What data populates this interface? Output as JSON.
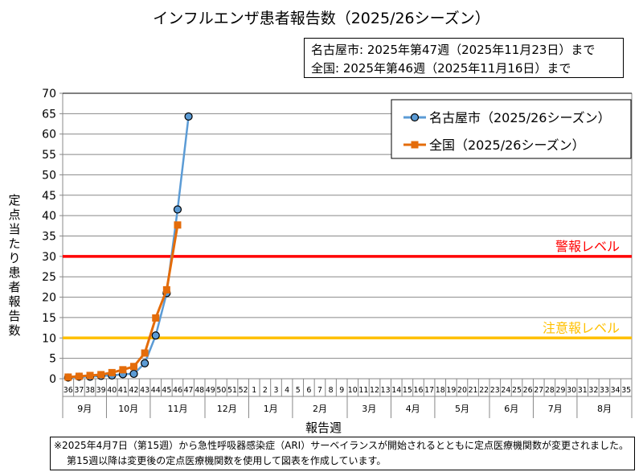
{
  "chart_data": {
    "type": "line",
    "title": "インフルエンザ患者報告数（2025/26シーズン）",
    "info_lines": [
      "名古屋市: 2025年第47週（2025年11月23日）まで",
      "全国: 2025年第46週（2025年11月16日）まで"
    ],
    "xlabel": "報告週",
    "ylabel": "定点当たり患者報告数",
    "ylim": [
      0,
      70
    ],
    "yticks": [
      0,
      5,
      10,
      15,
      20,
      25,
      30,
      35,
      40,
      45,
      50,
      55,
      60,
      65,
      70
    ],
    "grid": true,
    "legend_position": "top-right",
    "weeks": [
      "36",
      "37",
      "38",
      "39",
      "40",
      "41",
      "42",
      "43",
      "44",
      "45",
      "46",
      "47",
      "48",
      "49",
      "50",
      "51",
      "52",
      "1",
      "2",
      "3",
      "4",
      "5",
      "6",
      "7",
      "8",
      "9",
      "10",
      "11",
      "12",
      "13",
      "14",
      "15",
      "16",
      "17",
      "18",
      "19",
      "20",
      "21",
      "22",
      "23",
      "24",
      "25",
      "26",
      "27",
      "28",
      "29",
      "30",
      "31",
      "32",
      "33",
      "34",
      "35"
    ],
    "months": [
      {
        "label": "9月",
        "weeks": 4
      },
      {
        "label": "10月",
        "weeks": 4
      },
      {
        "label": "11月",
        "weeks": 5
      },
      {
        "label": "12月",
        "weeks": 4
      },
      {
        "label": "1月",
        "weeks": 4
      },
      {
        "label": "2月",
        "weeks": 5
      },
      {
        "label": "3月",
        "weeks": 4
      },
      {
        "label": "4月",
        "weeks": 4
      },
      {
        "label": "5月",
        "weeks": 5
      },
      {
        "label": "6月",
        "weeks": 4
      },
      {
        "label": "7月",
        "weeks": 4
      },
      {
        "label": "8月",
        "weeks": 5
      }
    ],
    "series": [
      {
        "name": "名古屋市（2025/26シーズン）",
        "color": "#5B9BD5",
        "marker": "circle",
        "values": [
          0.3,
          0.5,
          0.5,
          0.7,
          0.8,
          1.1,
          1.2,
          3.8,
          10.6,
          21.0,
          41.5,
          64.3
        ]
      },
      {
        "name": "全国（2025/26シーズン）",
        "color": "#E46C0A",
        "marker": "square",
        "values": [
          0.4,
          0.6,
          0.8,
          1.0,
          1.5,
          2.2,
          3.0,
          6.3,
          14.9,
          21.8,
          37.7
        ]
      }
    ],
    "reference_lines": [
      {
        "label": "警報レベル",
        "value": 30,
        "color": "#FF0000"
      },
      {
        "label": "注意報レベル",
        "value": 10,
        "color": "#FFC000"
      }
    ]
  },
  "footnote": [
    "※2025年4月7日（第15週）から急性呼吸器感染症（ARI）サーベイランスが開始されるとともに定点医療機関数が変更されました。",
    "第15週以降は変更後の定点医療機関数を使用して図表を作成しています。"
  ]
}
